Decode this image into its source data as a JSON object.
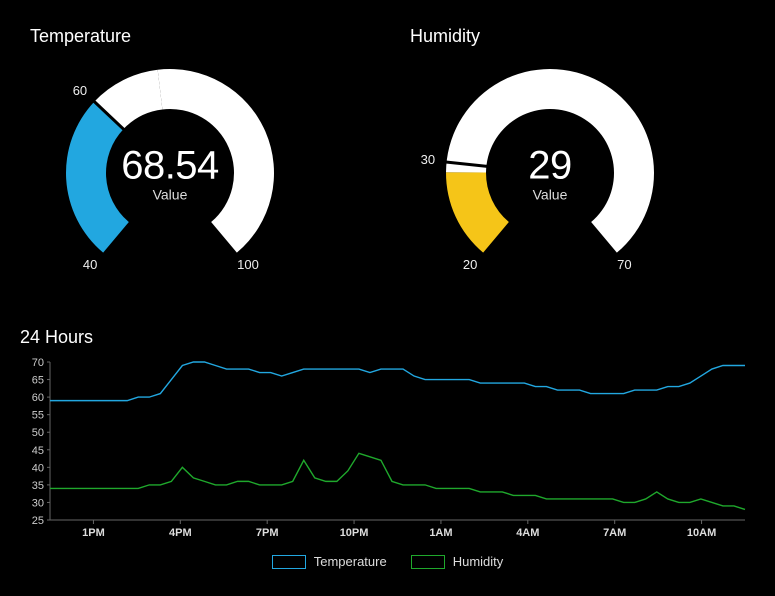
{
  "background_color": "#000000",
  "text_color": "#ffffff",
  "gauges": [
    {
      "title": "Temperature",
      "value": "68.54",
      "sub": "Value",
      "min": 40,
      "max": 100,
      "ticks": [
        40,
        60,
        100
      ],
      "threshold": 60,
      "fill_below_color": "#22a7e0",
      "fill_above_color": "#ffffff",
      "empty_color": "#ffffff",
      "ring_width": 40,
      "start_angle_deg": 230,
      "end_angle_deg": -50,
      "center_cutout_color": "#000000"
    },
    {
      "title": "Humidity",
      "value": "29",
      "sub": "Value",
      "min": 20,
      "max": 70,
      "ticks": [
        20,
        30,
        70
      ],
      "threshold": 30,
      "fill_below_color": "#f5c518",
      "fill_above_color": "#ffffff",
      "empty_color": "#ffffff",
      "ring_width": 40,
      "start_angle_deg": 230,
      "end_angle_deg": -50,
      "center_cutout_color": "#000000"
    }
  ],
  "line_chart": {
    "title": "24 Hours",
    "y_min": 25,
    "y_max": 70,
    "y_ticks": [
      25,
      30,
      35,
      40,
      45,
      50,
      55,
      60,
      65,
      70
    ],
    "x_labels": [
      "1PM",
      "4PM",
      "7PM",
      "10PM",
      "1AM",
      "4AM",
      "7AM",
      "10AM"
    ],
    "grid_color": "#333333",
    "axis_color": "#666666",
    "tick_font_size": 11,
    "background_color": "#000000",
    "series": [
      {
        "name": "Temperature",
        "color": "#22a7e0",
        "stroke_width": 1.4,
        "data": [
          59,
          59,
          59,
          59,
          59,
          59,
          59,
          59,
          60,
          60,
          61,
          65,
          69,
          70,
          70,
          69,
          68,
          68,
          68,
          67,
          67,
          66,
          67,
          68,
          68,
          68,
          68,
          68,
          68,
          67,
          68,
          68,
          68,
          66,
          65,
          65,
          65,
          65,
          65,
          64,
          64,
          64,
          64,
          64,
          63,
          63,
          62,
          62,
          62,
          61,
          61,
          61,
          61,
          62,
          62,
          62,
          63,
          63,
          64,
          66,
          68,
          69,
          69,
          69
        ]
      },
      {
        "name": "Humidity",
        "color": "#1fa82c",
        "stroke_width": 1.4,
        "data": [
          34,
          34,
          34,
          34,
          34,
          34,
          34,
          34,
          34,
          35,
          35,
          36,
          40,
          37,
          36,
          35,
          35,
          36,
          36,
          35,
          35,
          35,
          36,
          42,
          37,
          36,
          36,
          39,
          44,
          43,
          42,
          36,
          35,
          35,
          35,
          34,
          34,
          34,
          34,
          33,
          33,
          33,
          32,
          32,
          32,
          31,
          31,
          31,
          31,
          31,
          31,
          31,
          30,
          30,
          31,
          33,
          31,
          30,
          30,
          31,
          30,
          29,
          29,
          28
        ]
      }
    ],
    "legend": [
      "Temperature",
      "Humidity"
    ]
  }
}
